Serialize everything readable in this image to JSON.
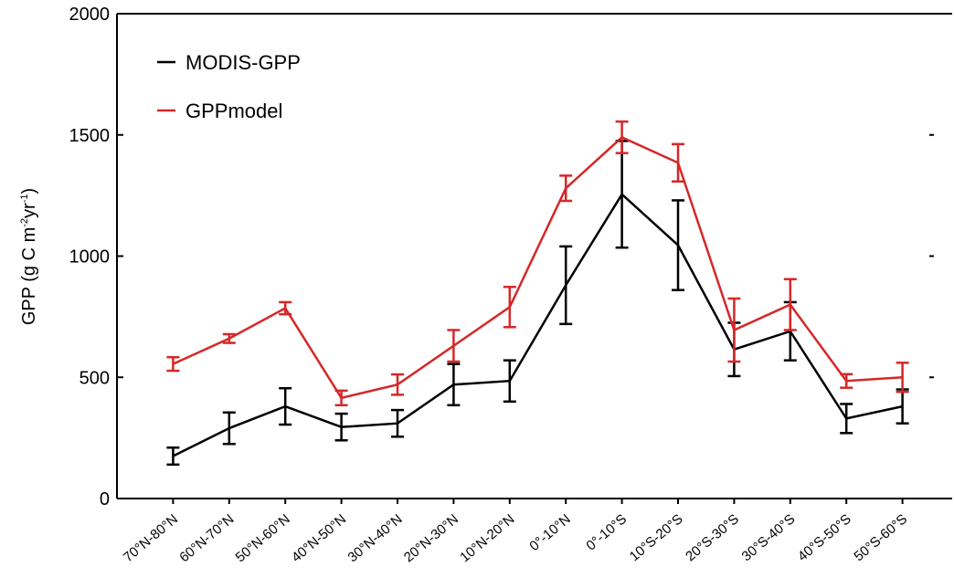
{
  "chart_data": {
    "type": "line",
    "y_label_parts": [
      "GPP (g C m",
      "-2",
      "yr",
      "-1",
      ")"
    ],
    "categories": [
      "70°N-80°N",
      "60°N-70°N",
      "50°N-60°N",
      "40°N-50°N",
      "30°N-40°N",
      "20°N-30°N",
      "10°N-20°N",
      "0°-10°N",
      "0°-10°S",
      "10°S-20°S",
      "20°S-30°S",
      "30°S-40°S",
      "40°S-50°S",
      "50°S-60°S"
    ],
    "series": [
      {
        "name": "MODIS-GPP",
        "color": "#000000",
        "values": [
          175,
          290,
          380,
          295,
          310,
          470,
          485,
          880,
          1255,
          1045,
          615,
          690,
          330,
          380
        ],
        "errors": [
          35,
          65,
          75,
          55,
          55,
          85,
          85,
          160,
          220,
          185,
          110,
          120,
          60,
          70
        ]
      },
      {
        "name": "GPPmodel",
        "color": "#d62728",
        "values": [
          555,
          660,
          785,
          415,
          470,
          630,
          790,
          1280,
          1490,
          1385,
          695,
          800,
          485,
          500
        ],
        "errors": [
          28,
          18,
          25,
          30,
          42,
          65,
          83,
          52,
          65,
          77,
          130,
          105,
          28,
          60
        ]
      }
    ],
    "ylim": [
      0,
      2000
    ],
    "yticks": [
      0,
      500,
      1000,
      1500,
      2000
    ],
    "legend": "upper left"
  }
}
